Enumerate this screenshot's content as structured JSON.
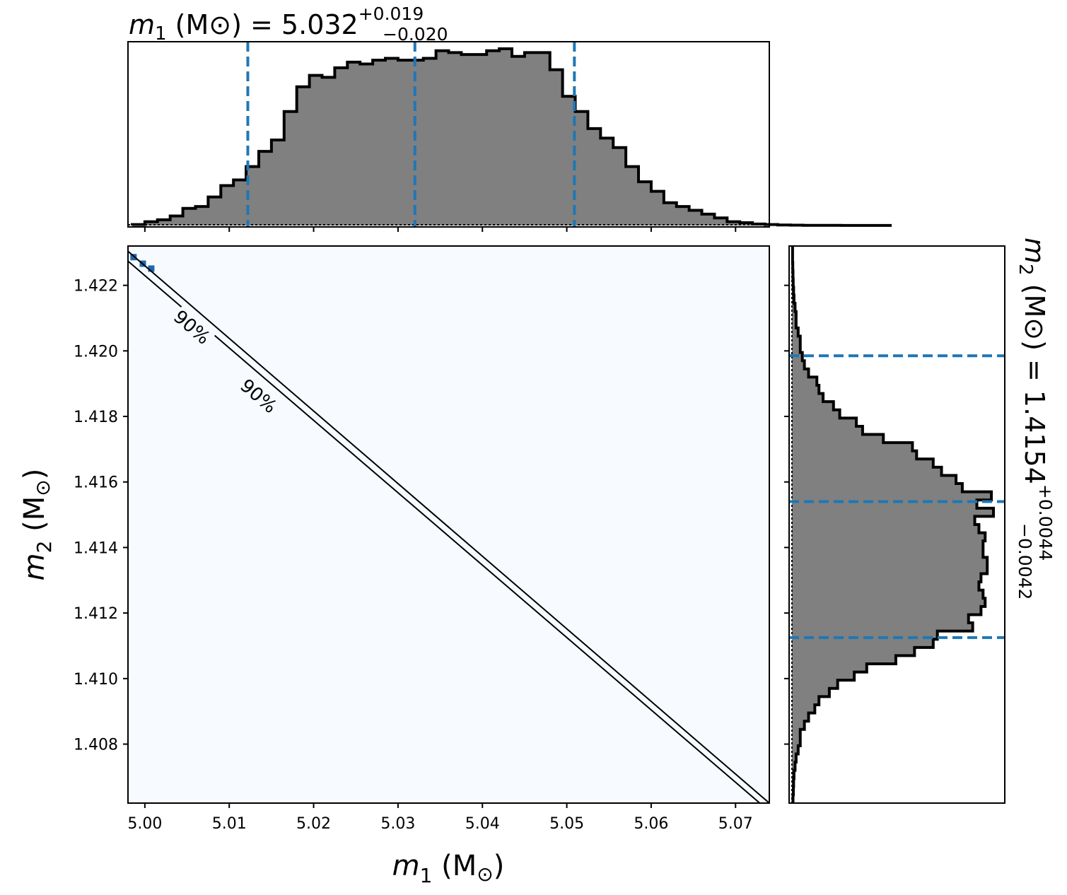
{
  "chart_data": {
    "type": "corner",
    "parameters": [
      "m1",
      "m2"
    ],
    "x_label": {
      "var": "m",
      "sub": "1",
      "unit": " (M",
      "sun": "⊙",
      "close": ")"
    },
    "y_label": {
      "var": "m",
      "sub": "2",
      "unit": " (M",
      "sun": "⊙",
      "close": ")"
    },
    "top_title": {
      "var": "m",
      "sub": "1",
      "text": " (M⊙) = 5.032",
      "plus": "+0.019",
      "minus": "−0.020"
    },
    "right_title": {
      "var": "m",
      "sub": "2",
      "text": " (M⊙) = 1.4154",
      "plus": "+0.0044",
      "minus": "−0.0042"
    },
    "xlim": [
      4.998,
      5.074
    ],
    "ylim": [
      1.4062,
      1.4232
    ],
    "x_ticks": [
      "5.00",
      "5.01",
      "5.02",
      "5.03",
      "5.04",
      "5.05",
      "5.06",
      "5.07"
    ],
    "x_tick_values": [
      5.0,
      5.01,
      5.02,
      5.03,
      5.04,
      5.05,
      5.06,
      5.07
    ],
    "y_ticks": [
      "1.408",
      "1.410",
      "1.412",
      "1.414",
      "1.416",
      "1.418",
      "1.420",
      "1.422"
    ],
    "y_tick_values": [
      1.408,
      1.41,
      1.412,
      1.414,
      1.416,
      1.418,
      1.42,
      1.422
    ],
    "m1_quantiles": [
      5.0122,
      5.032,
      5.0509
    ],
    "m2_quantiles": [
      1.41125,
      1.4154,
      1.41985
    ],
    "m1_hist": {
      "edges_start": 4.9985,
      "bin_width": 0.0015,
      "counts": [
        0.005,
        0.02,
        0.03,
        0.05,
        0.09,
        0.1,
        0.15,
        0.21,
        0.24,
        0.31,
        0.39,
        0.45,
        0.6,
        0.73,
        0.79,
        0.78,
        0.83,
        0.86,
        0.85,
        0.87,
        0.88,
        0.87,
        0.87,
        0.88,
        0.92,
        0.91,
        0.9,
        0.9,
        0.92,
        0.93,
        0.89,
        0.91,
        0.91,
        0.82,
        0.68,
        0.6,
        0.51,
        0.46,
        0.41,
        0.31,
        0.23,
        0.18,
        0.12,
        0.1,
        0.08,
        0.06,
        0.04,
        0.02,
        0.015,
        0.008,
        0.005,
        0.003,
        0.002,
        0.001,
        0.001,
        0.001,
        0.0005,
        0.0005,
        0.0005,
        0.0005
      ]
    },
    "m2_hist": {
      "edges_start": 1.4062,
      "bin_width": 0.00025,
      "counts": [
        0.005,
        0.007,
        0.008,
        0.01,
        0.015,
        0.02,
        0.03,
        0.04,
        0.04,
        0.06,
        0.08,
        0.11,
        0.13,
        0.18,
        0.22,
        0.3,
        0.36,
        0.5,
        0.59,
        0.68,
        0.7,
        0.87,
        0.85,
        0.91,
        0.93,
        0.92,
        0.9,
        0.91,
        0.94,
        0.94,
        0.92,
        0.92,
        0.93,
        0.9,
        0.88,
        0.97,
        0.89,
        0.96,
        0.82,
        0.79,
        0.72,
        0.68,
        0.6,
        0.58,
        0.44,
        0.34,
        0.31,
        0.23,
        0.2,
        0.15,
        0.13,
        0.12,
        0.08,
        0.06,
        0.05,
        0.04,
        0.04,
        0.03,
        0.02,
        0.02,
        0.015,
        0.01,
        0.008,
        0.006,
        0.005,
        0.004,
        0.003,
        0.003
      ]
    },
    "contour_lines": [
      {
        "points": [
          [
            4.998,
            1.42304
          ],
          [
            5.074,
            1.4062
          ]
        ]
      },
      {
        "points": [
          [
            4.998,
            1.42274
          ],
          [
            5.074,
            1.40595
          ]
        ]
      }
    ],
    "contour_labels": [
      {
        "text": "90%",
        "x": 5.0055,
        "y": 1.4207
      },
      {
        "text": "90%",
        "x": 5.0134,
        "y": 1.4186
      }
    ],
    "colors": {
      "hist_fill": "#808080",
      "hist_edge": "#000000",
      "quantile": "#1f77b4",
      "density_bg": "#f7fbff",
      "density_dot": "#2166ac",
      "contour": "#000000"
    }
  }
}
